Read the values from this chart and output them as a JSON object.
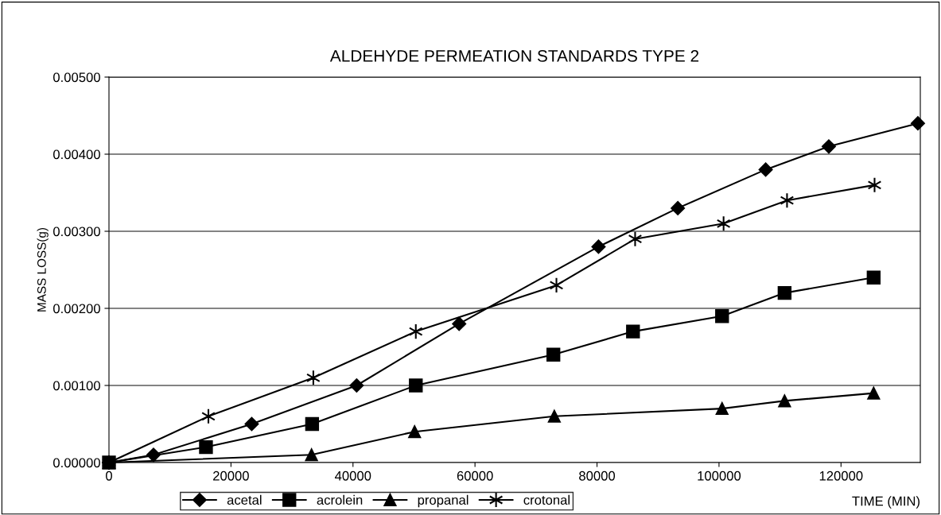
{
  "chart_data": {
    "type": "line",
    "title": "ALDEHYDE PERMEATION STANDARDS TYPE 2",
    "xlabel": "TIME (MIN)",
    "ylabel": "MASS LOSS(g)",
    "xlim": [
      0,
      133000
    ],
    "xticks": [
      0,
      20000,
      40000,
      60000,
      80000,
      100000,
      120000
    ],
    "ylim": [
      0,
      0.005
    ],
    "yticks": [
      {
        "value": 0,
        "label": "0.00000"
      },
      {
        "value": 0.001,
        "label": "0.00100"
      },
      {
        "value": 0.002,
        "label": "0.00200"
      },
      {
        "value": 0.003,
        "label": "0.00300"
      },
      {
        "value": 0.004,
        "label": "0.00400"
      },
      {
        "value": 0.005,
        "label": "0.00500"
      }
    ],
    "grid": "y",
    "legend": "bottom",
    "line_style": "solid",
    "series": [
      {
        "name": "acetal",
        "color": "#000000",
        "marker": "diamond",
        "x": [
          0,
          7300,
          23400,
          40600,
          57400,
          80250,
          93250,
          107650,
          118000,
          132600
        ],
        "values": [
          0,
          0.0001,
          0.0005,
          0.001,
          0.0018,
          0.0028,
          0.0033,
          0.0038,
          0.0041,
          0.0044
        ]
      },
      {
        "name": "acrolein",
        "color": "#000000",
        "marker": "square",
        "x": [
          0,
          15900,
          33300,
          50300,
          72850,
          85900,
          100500,
          110750,
          125350
        ],
        "values": [
          0,
          0.0002,
          0.0005,
          0.001,
          0.0014,
          0.0017,
          0.0019,
          0.0022,
          0.0024
        ]
      },
      {
        "name": "propanal",
        "color": "#000000",
        "marker": "triangle",
        "x": [
          0,
          33200,
          50100,
          73000,
          100500,
          110750,
          125350
        ],
        "values": [
          0,
          0.0001,
          0.0004,
          0.0006,
          0.0007,
          0.0008,
          0.0009
        ]
      },
      {
        "name": "crotonal",
        "color": "#000000",
        "marker": "cross",
        "x": [
          0,
          16300,
          33500,
          50300,
          73350,
          86250,
          100750,
          111150,
          125500
        ],
        "values": [
          0,
          0.0006,
          0.0011,
          0.0017,
          0.0023,
          0.0029,
          0.0031,
          0.0034,
          0.0036
        ]
      }
    ]
  }
}
